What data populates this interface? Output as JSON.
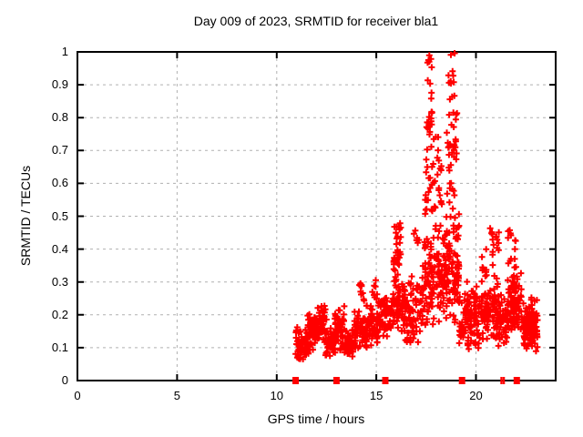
{
  "chart_data": {
    "type": "scatter",
    "title": "Day 009 of 2023, SRMTID for receiver bla1",
    "xlabel": "GPS time / hours",
    "ylabel": "SRMTID / TECUs",
    "xlim": [
      0,
      24
    ],
    "ylim": [
      0,
      1
    ],
    "xticks": [
      0,
      5,
      10,
      15,
      20
    ],
    "xtick_labels": [
      "0",
      "5",
      "10",
      "15",
      "20"
    ],
    "yticks": [
      0,
      0.1,
      0.2,
      0.3,
      0.4,
      0.5,
      0.6,
      0.7,
      0.8,
      0.9,
      1
    ],
    "ytick_labels": [
      "0",
      "0.1",
      "0.2",
      "0.3",
      "0.4",
      "0.5",
      "0.6",
      "0.7",
      "0.8",
      "0.9",
      "1"
    ],
    "grid": true,
    "legend": "none",
    "marker": "plus",
    "marker_color": "#ff0000",
    "grid_color": "#b0b0b0",
    "axis_color": "#000000",
    "x_data_range": [
      10.93,
      23.1
    ],
    "seed": 20230109,
    "clusters": [
      {
        "x": [
          10.95,
          11.6
        ],
        "y": [
          0.05,
          0.17
        ],
        "n": 70,
        "s": "g"
      },
      {
        "x": [
          11.55,
          12.1
        ],
        "y": [
          0.08,
          0.21
        ],
        "n": 60,
        "s": "g"
      },
      {
        "x": [
          12.05,
          12.5
        ],
        "y": [
          0.1,
          0.24
        ],
        "n": 50,
        "s": "g"
      },
      {
        "x": [
          12.45,
          12.95
        ],
        "y": [
          0.06,
          0.17
        ],
        "n": 45,
        "s": "g"
      },
      {
        "x": [
          12.9,
          13.4
        ],
        "y": [
          0.08,
          0.24
        ],
        "n": 55,
        "s": "g"
      },
      {
        "x": [
          13.35,
          13.95
        ],
        "y": [
          0.05,
          0.16
        ],
        "n": 45,
        "s": "g"
      },
      {
        "x": [
          13.9,
          14.55
        ],
        "y": [
          0.08,
          0.22
        ],
        "n": 60,
        "s": "g"
      },
      {
        "x": [
          14.15,
          14.45
        ],
        "y": [
          0.22,
          0.3
        ],
        "n": 10,
        "s": "u"
      },
      {
        "x": [
          14.5,
          15.15
        ],
        "y": [
          0.1,
          0.25
        ],
        "n": 60,
        "s": "g"
      },
      {
        "x": [
          14.75,
          15.05
        ],
        "y": [
          0.25,
          0.31
        ],
        "n": 8,
        "s": "u"
      },
      {
        "x": [
          15.1,
          15.75
        ],
        "y": [
          0.12,
          0.28
        ],
        "n": 55,
        "s": "g"
      },
      {
        "x": [
          15.7,
          16.45
        ],
        "y": [
          0.13,
          0.33
        ],
        "n": 70,
        "s": "g"
      },
      {
        "x": [
          15.85,
          16.25
        ],
        "y": [
          0.3,
          0.5
        ],
        "n": 35,
        "s": "u"
      },
      {
        "x": [
          16.4,
          17.35
        ],
        "y": [
          0.1,
          0.32
        ],
        "n": 85,
        "s": "g"
      },
      {
        "x": [
          16.85,
          17.15
        ],
        "y": [
          0.4,
          0.47
        ],
        "n": 6,
        "s": "u"
      },
      {
        "x": [
          17.3,
          18.35
        ],
        "y": [
          0.15,
          0.5
        ],
        "n": 110,
        "s": "g"
      },
      {
        "x": [
          17.45,
          17.9
        ],
        "y": [
          0.5,
          0.82
        ],
        "n": 40,
        "s": "u"
      },
      {
        "x": [
          17.55,
          17.8
        ],
        "y": [
          0.85,
          1.0
        ],
        "n": 10,
        "s": "u"
      },
      {
        "x": [
          17.9,
          18.3
        ],
        "y": [
          0.5,
          0.78
        ],
        "n": 18,
        "s": "u"
      },
      {
        "x": [
          18.35,
          19.15
        ],
        "y": [
          0.15,
          0.55
        ],
        "n": 110,
        "s": "g"
      },
      {
        "x": [
          18.5,
          19.05
        ],
        "y": [
          0.55,
          0.82
        ],
        "n": 35,
        "s": "u"
      },
      {
        "x": [
          18.6,
          18.95
        ],
        "y": [
          0.85,
          1.0
        ],
        "n": 12,
        "s": "u"
      },
      {
        "x": [
          19.15,
          19.6
        ],
        "y": [
          0.08,
          0.3
        ],
        "n": 35,
        "s": "g"
      },
      {
        "x": [
          19.55,
          20.4
        ],
        "y": [
          0.08,
          0.32
        ],
        "n": 90,
        "s": "g"
      },
      {
        "x": [
          20.25,
          20.55
        ],
        "y": [
          0.32,
          0.4
        ],
        "n": 8,
        "s": "u"
      },
      {
        "x": [
          20.4,
          21.15
        ],
        "y": [
          0.1,
          0.33
        ],
        "n": 80,
        "s": "g"
      },
      {
        "x": [
          20.7,
          20.9
        ],
        "y": [
          0.35,
          0.47
        ],
        "n": 9,
        "s": "u"
      },
      {
        "x": [
          21.0,
          21.15
        ],
        "y": [
          0.35,
          0.47
        ],
        "n": 7,
        "s": "u"
      },
      {
        "x": [
          21.1,
          21.6
        ],
        "y": [
          0.1,
          0.27
        ],
        "n": 50,
        "s": "g"
      },
      {
        "x": [
          21.55,
          22.3
        ],
        "y": [
          0.12,
          0.33
        ],
        "n": 90,
        "s": "g"
      },
      {
        "x": [
          21.6,
          21.8
        ],
        "y": [
          0.33,
          0.46
        ],
        "n": 9,
        "s": "u"
      },
      {
        "x": [
          21.9,
          22.05
        ],
        "y": [
          0.33,
          0.44
        ],
        "n": 6,
        "s": "u"
      },
      {
        "x": [
          22.3,
          23.1
        ],
        "y": [
          0.08,
          0.26
        ],
        "n": 100,
        "s": "g"
      },
      {
        "x": [
          22.55,
          22.95
        ],
        "y": [
          0.12,
          0.2
        ],
        "n": 45,
        "s": "g"
      }
    ],
    "zero_markers": {
      "squares": [
        10.95,
        13.0,
        15.45,
        19.3,
        22.05
      ],
      "thin_ticks": [
        21.28,
        21.4
      ]
    }
  }
}
